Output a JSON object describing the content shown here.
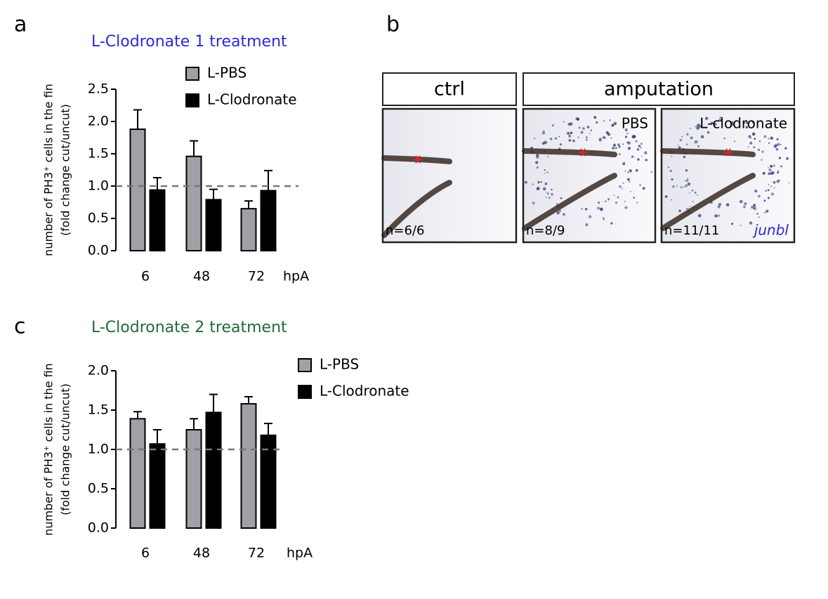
{
  "panel_labels": [
    "a",
    "b",
    "c"
  ],
  "chart_data": [
    {
      "type": "bar",
      "title": "L-Clodronate 1 treatment",
      "title_color": "#2a2ad8",
      "y_label": [
        "number of PH3⁺ cells in the fin",
        "(fold change cut/uncut)"
      ],
      "x_label": "hpA",
      "categories": [
        "6",
        "48",
        "72"
      ],
      "series": [
        {
          "name": "L-PBS",
          "color": "#a0a0a6",
          "values": [
            1.88,
            1.46,
            0.65
          ],
          "errors": [
            0.3,
            0.24,
            0.12
          ]
        },
        {
          "name": "L-Clodronate",
          "color": "#000000",
          "values": [
            0.94,
            0.79,
            0.93
          ],
          "errors": [
            0.19,
            0.16,
            0.31
          ]
        }
      ],
      "ylim": [
        0,
        2.5
      ],
      "yticks": [
        {
          "value": 0,
          "label": "0.0"
        },
        0.5,
        {
          "value": 1,
          "label": "1.0"
        },
        1.5,
        {
          "value": 2,
          "label": "2.0"
        },
        2.5
      ],
      "reference_line": 1
    },
    {
      "type": "bar",
      "title": "L-Clodronate 2 treatment",
      "title_color": "#1e6b3c",
      "y_label": [
        "number of PH3⁺ cells in the fin",
        "(fold change cut/uncut)"
      ],
      "x_label": "hpA",
      "categories": [
        "6",
        "48",
        "72"
      ],
      "series": [
        {
          "name": "L-PBS",
          "color": "#a0a0a6",
          "values": [
            1.39,
            1.25,
            1.58
          ],
          "errors": [
            0.09,
            0.14,
            0.09
          ]
        },
        {
          "name": "L-Clodronate",
          "color": "#000000",
          "values": [
            1.07,
            1.47,
            1.18
          ],
          "errors": [
            0.18,
            0.23,
            0.15
          ]
        }
      ],
      "ylim": [
        0,
        2
      ],
      "yticks": [
        {
          "value": 0,
          "label": "0.0"
        },
        0.5,
        {
          "value": 1,
          "label": "1.0"
        },
        1.5,
        {
          "value": 2,
          "label": "2.0"
        }
      ],
      "reference_line": 1
    }
  ],
  "images": {
    "headers": [
      "ctrl",
      "amputation"
    ],
    "panels": [
      {
        "label": null,
        "count": "n=6/6"
      },
      {
        "label": "PBS",
        "count": "n=8/9"
      },
      {
        "label": "L-clodronate",
        "count": "n=11/11",
        "gene": "junbl"
      }
    ]
  }
}
